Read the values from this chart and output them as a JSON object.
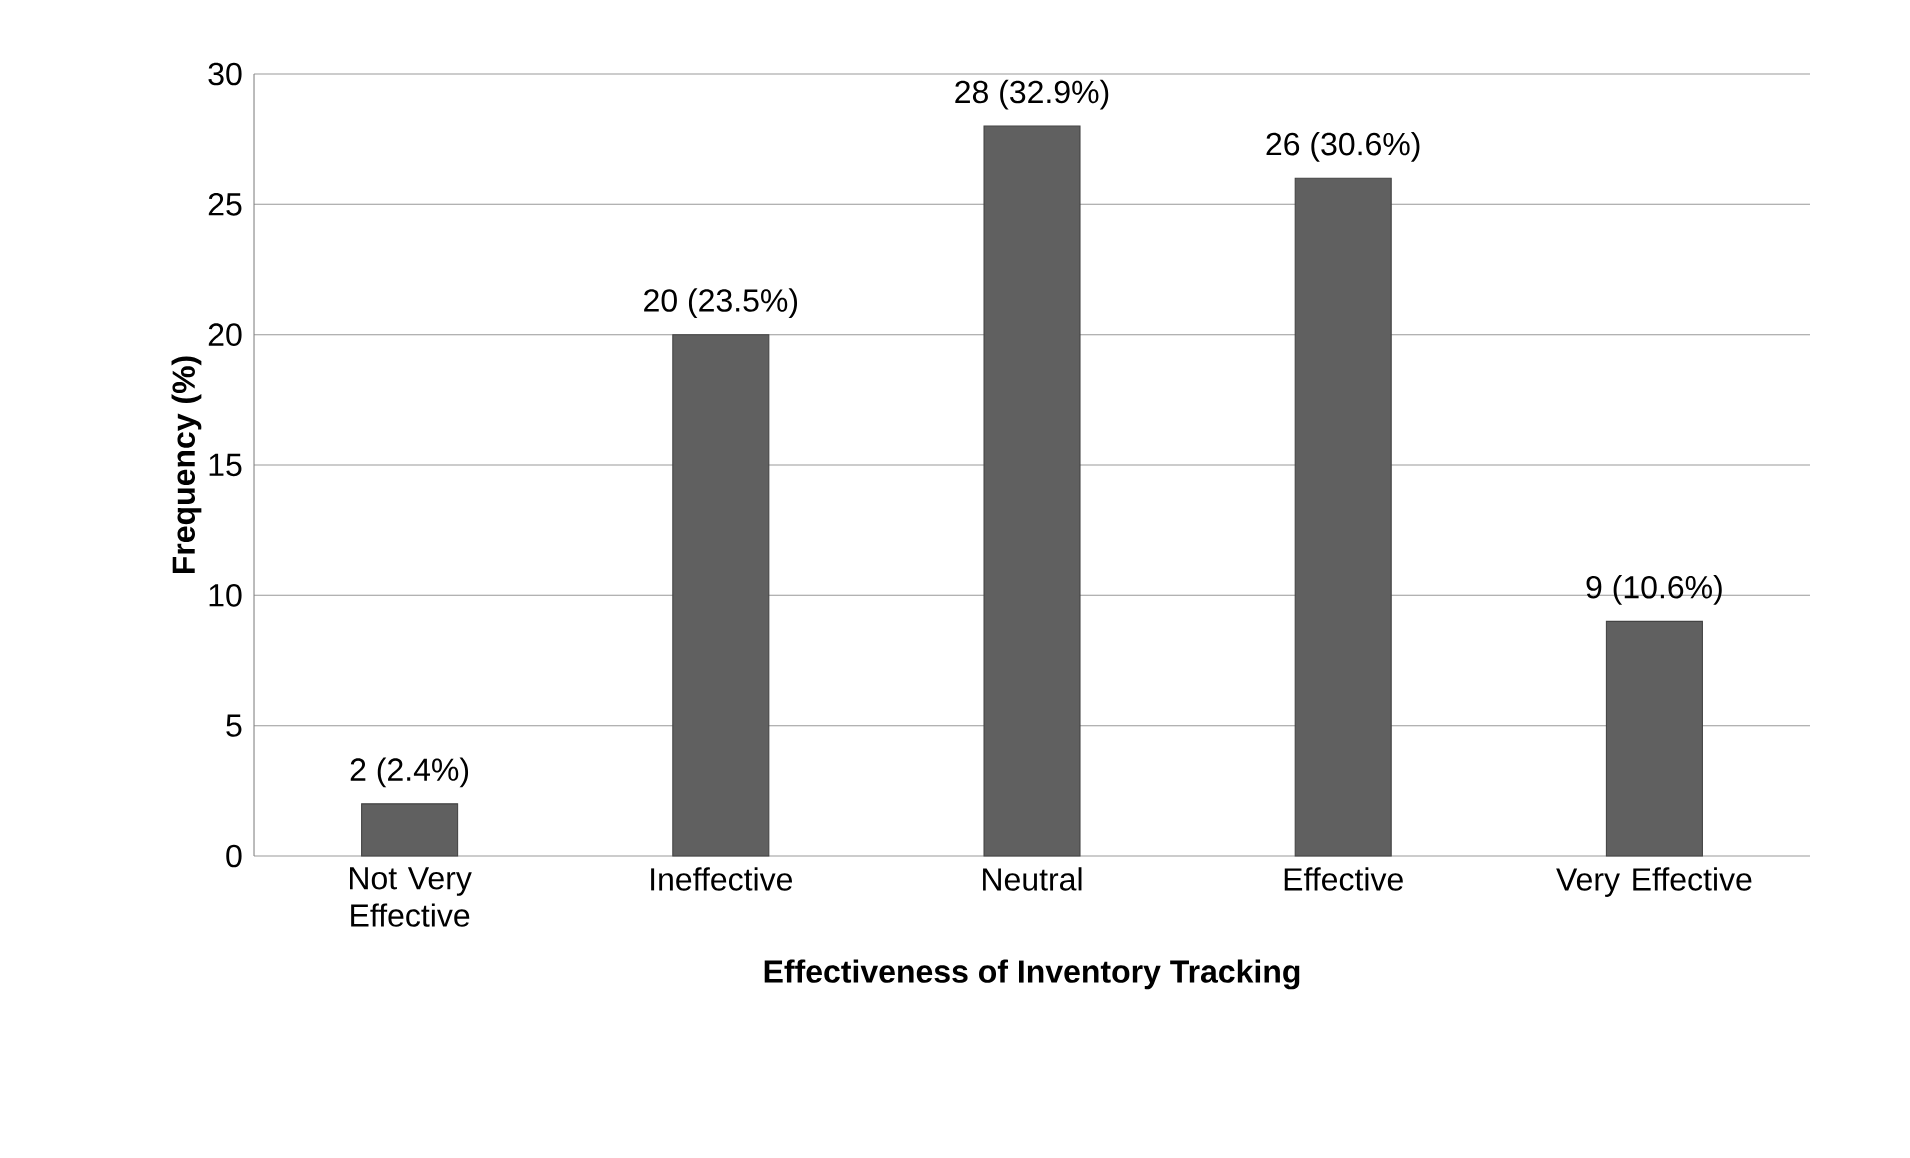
{
  "chart_data": {
    "type": "bar",
    "xlabel": "Effectiveness of Inventory Tracking",
    "ylabel": "Frequency (%)",
    "categories": [
      "Not Very Effective",
      "Ineffective",
      "Neutral",
      "Effective",
      "Very Effective"
    ],
    "values": [
      2,
      20,
      28,
      26,
      9
    ],
    "value_labels": [
      "2 (2.4%)",
      "20 (23.5%)",
      "28 (32.9%)",
      "26 (30.6%)",
      "9 (10.6%)"
    ],
    "color": "#606060",
    "ylim": [
      0,
      30
    ],
    "yticks": [
      0,
      5,
      10,
      15,
      20,
      25,
      30
    ],
    "grid": "y"
  }
}
